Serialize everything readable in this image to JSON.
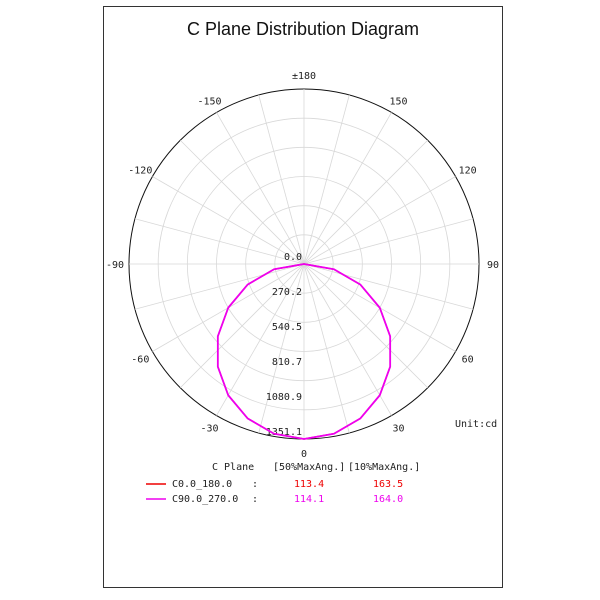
{
  "chart_data": {
    "type": "polar",
    "title": "C Plane Distribution Diagram",
    "unit_label": "Unit:cd",
    "angle_labels": [
      "±180",
      "150",
      "120",
      "90",
      "60",
      "30",
      "0",
      "-30",
      "-60",
      "-90",
      "-120",
      "-150"
    ],
    "angle_values": [
      180,
      150,
      120,
      90,
      60,
      30,
      0,
      -30,
      -60,
      -90,
      -120,
      -150
    ],
    "radial_ticks": [
      "0.0",
      "270.2",
      "540.5",
      "810.7",
      "1080.9",
      "1351.1"
    ],
    "radial_values": [
      0,
      270.2,
      540.5,
      810.7,
      1080.9,
      1351.1
    ],
    "rmax": 1351.1,
    "grid": true,
    "series": [
      {
        "name": "C0.0_180.0",
        "color": "#ee0000",
        "angles": [
          0,
          10,
          20,
          30,
          40,
          50,
          60,
          70,
          80,
          90
        ],
        "values": [
          1351.1,
          1330.6,
          1269.6,
          1170.1,
          1035.0,
          868.5,
          675.6,
          462.1,
          234.6,
          0
        ]
      },
      {
        "name": "C90.0_270.0",
        "color": "#ee00ee",
        "angles": [
          0,
          10,
          20,
          30,
          40,
          50,
          60,
          70,
          80,
          90
        ],
        "values": [
          1351.1,
          1330.6,
          1269.6,
          1170.1,
          1035.0,
          868.5,
          675.6,
          462.1,
          234.6,
          0
        ]
      }
    ],
    "legend": {
      "header": [
        "C Plane",
        "[50%MaxAng.]",
        "[10%MaxAng.]"
      ],
      "rows": [
        {
          "name": "C0.0_180.0",
          "sep": ":",
          "half": "113.4",
          "tenth": "163.5",
          "color": "#ee0000"
        },
        {
          "name": "C90.0_270.0",
          "sep": ":",
          "half": "114.1",
          "tenth": "164.0",
          "color": "#ee00ee"
        }
      ]
    }
  }
}
